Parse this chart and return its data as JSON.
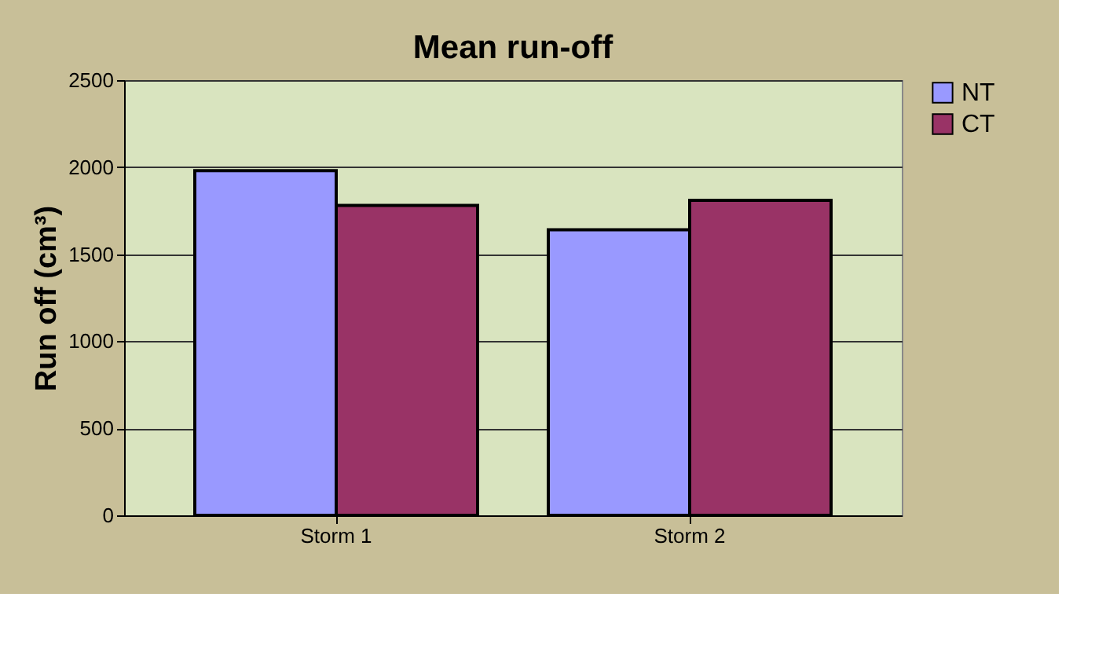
{
  "chart_data": {
    "type": "bar",
    "title": "Mean run-off",
    "ylabel": "Run off (cm³)",
    "categories": [
      "Storm 1",
      "Storm 2"
    ],
    "series": [
      {
        "name": "NT",
        "color": "#9999ff",
        "values": [
          1980,
          1640
        ]
      },
      {
        "name": "CT",
        "color": "#993366",
        "values": [
          1780,
          1810
        ]
      }
    ],
    "ylim": [
      0,
      2500
    ],
    "yticks": [
      0,
      500,
      1000,
      1500,
      2000,
      2500
    ],
    "grid": "y",
    "legend": "right"
  }
}
